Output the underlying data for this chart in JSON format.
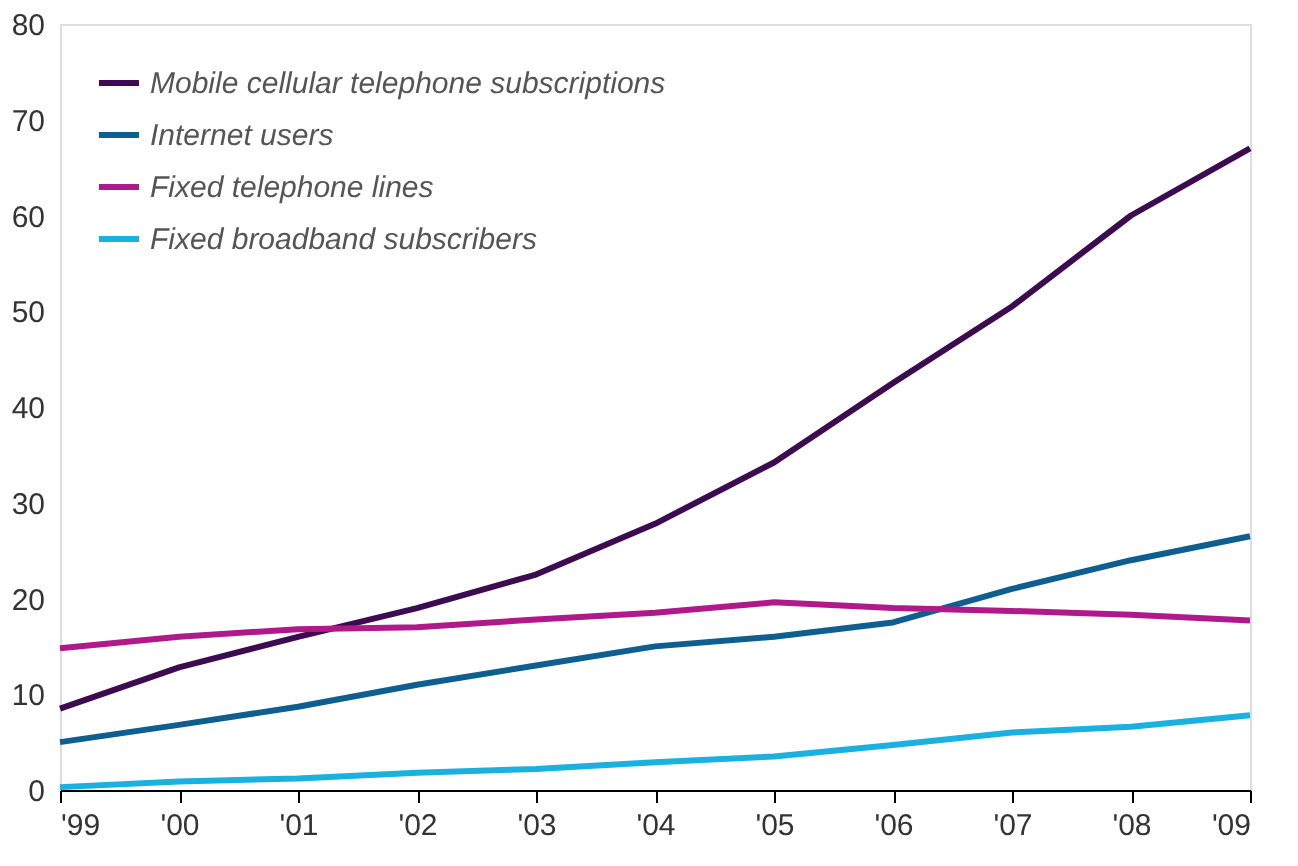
{
  "chart_data": {
    "type": "line",
    "categories": [
      "'99",
      "'00",
      "'01",
      "'02",
      "'03",
      "'04",
      "'05",
      "'06",
      "'07",
      "'08",
      "'09"
    ],
    "series": [
      {
        "name": "Mobile cellular telephone subscriptions",
        "color": "#3d0b50",
        "values": [
          8.5,
          12.8,
          16,
          19,
          22.5,
          27.8,
          34.2,
          42.5,
          50.5,
          60,
          67
        ]
      },
      {
        "name": "Internet users",
        "color": "#0e5f8f",
        "values": [
          5,
          6.8,
          8.7,
          11,
          13,
          15,
          16,
          17.5,
          21,
          24,
          26.5
        ]
      },
      {
        "name": "Fixed telephone lines",
        "color": "#b0198a",
        "values": [
          14.8,
          16,
          16.8,
          17,
          17.8,
          18.5,
          19.6,
          19,
          18.7,
          18.3,
          17.7
        ]
      },
      {
        "name": "Fixed broadband subscribers",
        "color": "#1ab0e0",
        "values": [
          0.3,
          0.9,
          1.2,
          1.8,
          2.2,
          2.9,
          3.5,
          4.7,
          6,
          6.6,
          7.8
        ]
      }
    ],
    "ylim": [
      0,
      80
    ],
    "yticks": [
      0,
      10,
      20,
      30,
      40,
      50,
      60,
      70,
      80
    ],
    "grid": false,
    "legend": "top left",
    "marker": "none",
    "line_style": "solid"
  }
}
